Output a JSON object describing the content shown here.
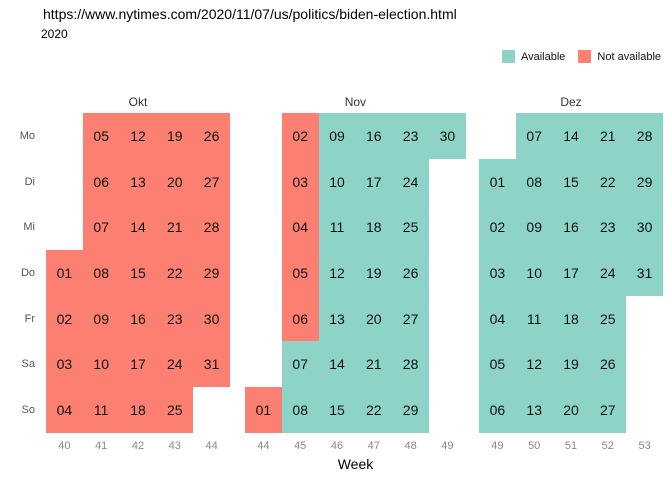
{
  "chart_data": {
    "type": "heatmap",
    "title": "https://www.nytimes.com/2020/11/07/us/politics/biden-election.html",
    "subtitle": "2020",
    "xlabel": "Week",
    "legend_position": "top-right",
    "grid": "off",
    "statuses": {
      "a": {
        "label": "Available",
        "color": "#8DD3C7"
      },
      "n": {
        "label": "Not available",
        "color": "#FB8072"
      }
    },
    "weekday_labels": [
      "Mo",
      "Di",
      "Mi",
      "Do",
      "Fr",
      "Sa",
      "So"
    ],
    "months": [
      {
        "label": "Okt",
        "weeks": [
          "40",
          "41",
          "42",
          "43",
          "44"
        ],
        "rows": [
          [
            null,
            {
              "d": "05",
              "s": "n"
            },
            {
              "d": "12",
              "s": "n"
            },
            {
              "d": "19",
              "s": "n"
            },
            {
              "d": "26",
              "s": "n"
            }
          ],
          [
            null,
            {
              "d": "06",
              "s": "n"
            },
            {
              "d": "13",
              "s": "n"
            },
            {
              "d": "20",
              "s": "n"
            },
            {
              "d": "27",
              "s": "n"
            }
          ],
          [
            null,
            {
              "d": "07",
              "s": "n"
            },
            {
              "d": "14",
              "s": "n"
            },
            {
              "d": "21",
              "s": "n"
            },
            {
              "d": "28",
              "s": "n"
            }
          ],
          [
            {
              "d": "01",
              "s": "n"
            },
            {
              "d": "08",
              "s": "n"
            },
            {
              "d": "15",
              "s": "n"
            },
            {
              "d": "22",
              "s": "n"
            },
            {
              "d": "29",
              "s": "n"
            }
          ],
          [
            {
              "d": "02",
              "s": "n"
            },
            {
              "d": "09",
              "s": "n"
            },
            {
              "d": "16",
              "s": "n"
            },
            {
              "d": "23",
              "s": "n"
            },
            {
              "d": "30",
              "s": "n"
            }
          ],
          [
            {
              "d": "03",
              "s": "n"
            },
            {
              "d": "10",
              "s": "n"
            },
            {
              "d": "17",
              "s": "n"
            },
            {
              "d": "24",
              "s": "n"
            },
            {
              "d": "31",
              "s": "n"
            }
          ],
          [
            {
              "d": "04",
              "s": "n"
            },
            {
              "d": "11",
              "s": "n"
            },
            {
              "d": "18",
              "s": "n"
            },
            {
              "d": "25",
              "s": "n"
            },
            null
          ]
        ]
      },
      {
        "label": "Nov",
        "weeks": [
          "44",
          "45",
          "46",
          "47",
          "48",
          "49"
        ],
        "rows": [
          [
            null,
            {
              "d": "02",
              "s": "n"
            },
            {
              "d": "09",
              "s": "a"
            },
            {
              "d": "16",
              "s": "a"
            },
            {
              "d": "23",
              "s": "a"
            },
            {
              "d": "30",
              "s": "a"
            }
          ],
          [
            null,
            {
              "d": "03",
              "s": "n"
            },
            {
              "d": "10",
              "s": "a"
            },
            {
              "d": "17",
              "s": "a"
            },
            {
              "d": "24",
              "s": "a"
            },
            null
          ],
          [
            null,
            {
              "d": "04",
              "s": "n"
            },
            {
              "d": "11",
              "s": "a"
            },
            {
              "d": "18",
              "s": "a"
            },
            {
              "d": "25",
              "s": "a"
            },
            null
          ],
          [
            null,
            {
              "d": "05",
              "s": "n"
            },
            {
              "d": "12",
              "s": "a"
            },
            {
              "d": "19",
              "s": "a"
            },
            {
              "d": "26",
              "s": "a"
            },
            null
          ],
          [
            null,
            {
              "d": "06",
              "s": "n"
            },
            {
              "d": "13",
              "s": "a"
            },
            {
              "d": "20",
              "s": "a"
            },
            {
              "d": "27",
              "s": "a"
            },
            null
          ],
          [
            null,
            {
              "d": "07",
              "s": "a"
            },
            {
              "d": "14",
              "s": "a"
            },
            {
              "d": "21",
              "s": "a"
            },
            {
              "d": "28",
              "s": "a"
            },
            null
          ],
          [
            {
              "d": "01",
              "s": "n"
            },
            {
              "d": "08",
              "s": "a"
            },
            {
              "d": "15",
              "s": "a"
            },
            {
              "d": "22",
              "s": "a"
            },
            {
              "d": "29",
              "s": "a"
            },
            null
          ]
        ]
      },
      {
        "label": "Dez",
        "weeks": [
          "49",
          "50",
          "51",
          "52",
          "53"
        ],
        "rows": [
          [
            null,
            {
              "d": "07",
              "s": "a"
            },
            {
              "d": "14",
              "s": "a"
            },
            {
              "d": "21",
              "s": "a"
            },
            {
              "d": "28",
              "s": "a"
            }
          ],
          [
            {
              "d": "01",
              "s": "a"
            },
            {
              "d": "08",
              "s": "a"
            },
            {
              "d": "15",
              "s": "a"
            },
            {
              "d": "22",
              "s": "a"
            },
            {
              "d": "29",
              "s": "a"
            }
          ],
          [
            {
              "d": "02",
              "s": "a"
            },
            {
              "d": "09",
              "s": "a"
            },
            {
              "d": "16",
              "s": "a"
            },
            {
              "d": "23",
              "s": "a"
            },
            {
              "d": "30",
              "s": "a"
            }
          ],
          [
            {
              "d": "03",
              "s": "a"
            },
            {
              "d": "10",
              "s": "a"
            },
            {
              "d": "17",
              "s": "a"
            },
            {
              "d": "24",
              "s": "a"
            },
            {
              "d": "31",
              "s": "a"
            }
          ],
          [
            {
              "d": "04",
              "s": "a"
            },
            {
              "d": "11",
              "s": "a"
            },
            {
              "d": "18",
              "s": "a"
            },
            {
              "d": "25",
              "s": "a"
            },
            null
          ],
          [
            {
              "d": "05",
              "s": "a"
            },
            {
              "d": "12",
              "s": "a"
            },
            {
              "d": "19",
              "s": "a"
            },
            {
              "d": "26",
              "s": "a"
            },
            null
          ],
          [
            {
              "d": "06",
              "s": "a"
            },
            {
              "d": "13",
              "s": "a"
            },
            {
              "d": "20",
              "s": "a"
            },
            {
              "d": "27",
              "s": "a"
            },
            null
          ]
        ]
      }
    ]
  },
  "legend": {
    "items": [
      {
        "label": "Available",
        "color": "#8DD3C7"
      },
      {
        "label": "Not available",
        "color": "#FB8072"
      }
    ]
  }
}
